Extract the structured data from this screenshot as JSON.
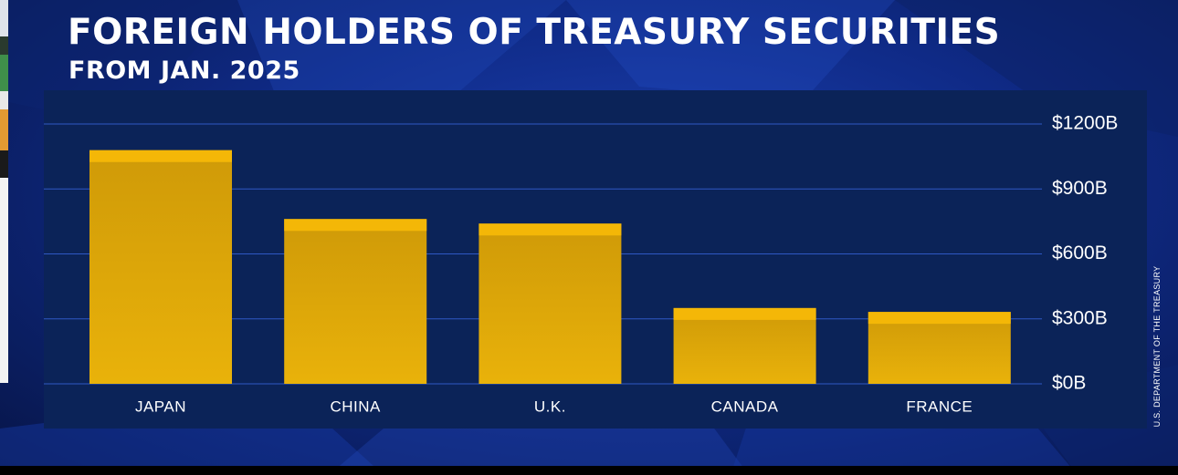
{
  "header": {
    "title": "FOREIGN HOLDERS OF TREASURY SECURITIES",
    "subtitle": "FROM JAN. 2025"
  },
  "source": "U.S. DEPARTMENT OF THE TREASURY",
  "colors": {
    "bar_top": "#f4b707",
    "bar_body": "#dca709",
    "panel": "#0b2358",
    "gridline": "#2f58c4",
    "text": "#ffffff"
  },
  "chart_data": {
    "type": "bar",
    "title": "FOREIGN HOLDERS OF TREASURY SECURITIES",
    "subtitle": "FROM JAN. 2025",
    "categories": [
      "JAPAN",
      "CHINA",
      "U.K.",
      "CANADA",
      "FRANCE"
    ],
    "values": [
      1079,
      761,
      740,
      350,
      332
    ],
    "unit": "billions USD",
    "ylim": [
      0,
      1200
    ],
    "yticks": [
      0,
      300,
      600,
      900,
      1200
    ],
    "ytick_labels": [
      "$0B",
      "$300B",
      "$600B",
      "$900B",
      "$1200B"
    ],
    "xlabel": "",
    "ylabel": "",
    "grid": true,
    "yaxis_side": "right",
    "legend": "none"
  }
}
